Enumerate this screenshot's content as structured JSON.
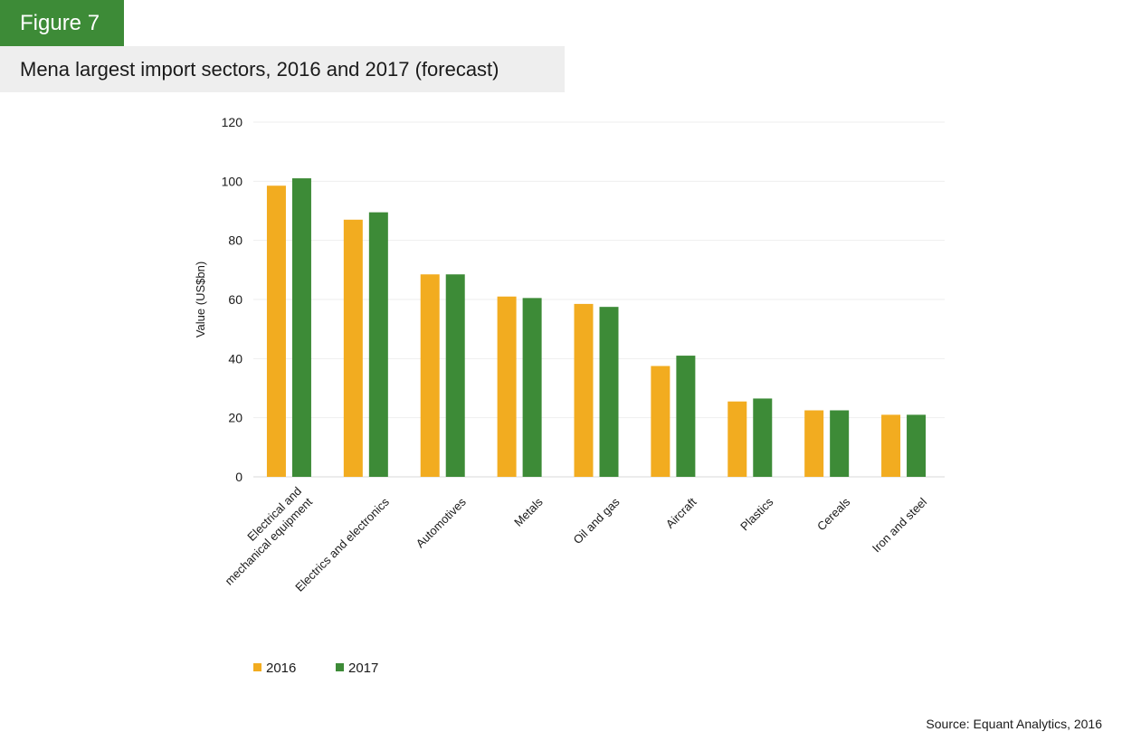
{
  "figure_label": "Figure 7",
  "title": "Mena largest import sectors, 2016 and 2017 (forecast)",
  "source": "Source: Equant Analytics, 2016",
  "colors": {
    "2016": "#f2ac20",
    "2017": "#3d8b37",
    "tag_bg": "#3d8b37",
    "title_bg": "#eeeeee",
    "grid": "#eeeeee"
  },
  "chart_data": {
    "type": "bar",
    "title": "Mena largest import sectors, 2016 and 2017 (forecast)",
    "xlabel": "",
    "ylabel": "Value (US$bn)",
    "ylim": [
      0,
      120
    ],
    "yticks": [
      0,
      20,
      40,
      60,
      80,
      100,
      120
    ],
    "grid": true,
    "legend_position": "bottom-left",
    "categories": [
      [
        "Electrical and",
        "mechanical equipment"
      ],
      [
        "Electrics and electronics"
      ],
      [
        "Automotives"
      ],
      [
        "Metals"
      ],
      [
        "Oil and gas"
      ],
      [
        "Aircraft"
      ],
      [
        "Plastics"
      ],
      [
        "Cereals"
      ],
      [
        "Iron and steel"
      ]
    ],
    "series": [
      {
        "name": "2016",
        "color": "#f2ac20",
        "values": [
          98.5,
          87,
          68.5,
          61,
          58.5,
          37.5,
          25.5,
          22.5,
          21
        ]
      },
      {
        "name": "2017",
        "color": "#3d8b37",
        "values": [
          101,
          89.5,
          68.5,
          60.5,
          57.5,
          41,
          26.5,
          22.5,
          21
        ]
      }
    ]
  }
}
